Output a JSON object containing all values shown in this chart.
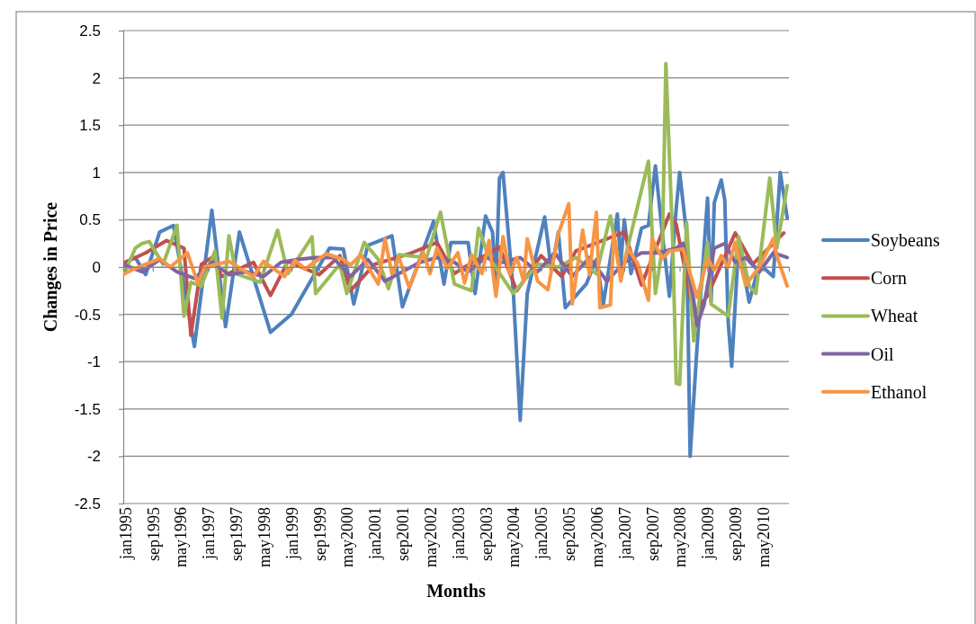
{
  "chart_data": {
    "type": "line",
    "xlabel": "Months",
    "ylabel": "Changes in Price",
    "xlim": [
      "1994-12-16",
      "2010-12-16"
    ],
    "ylim": [
      -2.5,
      2.5
    ],
    "yticks": [
      -2.5,
      -2,
      -1.5,
      -1,
      -0.5,
      0,
      0.5,
      1,
      1.5,
      2,
      2.5
    ],
    "xticks": [
      {
        "value": "1995-01",
        "label": "jan1995"
      },
      {
        "value": "1995-09",
        "label": "sep1995"
      },
      {
        "value": "1996-05",
        "label": "may1996"
      },
      {
        "value": "1997-01",
        "label": "jan1997"
      },
      {
        "value": "1997-09",
        "label": "sep1997"
      },
      {
        "value": "1998-05",
        "label": "may1998"
      },
      {
        "value": "1999-01",
        "label": "jan1999"
      },
      {
        "value": "1999-09",
        "label": "sep1999"
      },
      {
        "value": "2000-05",
        "label": "may2000"
      },
      {
        "value": "2001-01",
        "label": "jan2001"
      },
      {
        "value": "2001-09",
        "label": "sep2001"
      },
      {
        "value": "2002-05",
        "label": "may2002"
      },
      {
        "value": "2003-01",
        "label": "jan2003"
      },
      {
        "value": "2003-09",
        "label": "sep2003"
      },
      {
        "value": "2004-05",
        "label": "may2004"
      },
      {
        "value": "2005-01",
        "label": "jan2005"
      },
      {
        "value": "2005-09",
        "label": "sep2005"
      },
      {
        "value": "2006-05",
        "label": "may2006"
      },
      {
        "value": "2007-01",
        "label": "jan2007"
      },
      {
        "value": "2007-09",
        "label": "sep2007"
      },
      {
        "value": "2008-05",
        "label": "may2008"
      },
      {
        "value": "2009-01",
        "label": "jan2009"
      },
      {
        "value": "2009-09",
        "label": "sep2009"
      },
      {
        "value": "2010-05",
        "label": "may2010"
      }
    ],
    "grid": "y",
    "legend": "right",
    "marker": "none",
    "line_style": "solid",
    "series": [
      {
        "name": "Soybeans",
        "color": "#4f81bd",
        "x": [
          "1995-01",
          "1995-04",
          "1995-07",
          "1995-11",
          "1996-03",
          "1996-09",
          "1997-02",
          "1997-06",
          "1997-10",
          "1998-07",
          "1999-01",
          "1999-12",
          "2000-04",
          "2000-07",
          "2000-11",
          "2001-06",
          "2001-09",
          "2002-06",
          "2002-09",
          "2002-11",
          "2003-04",
          "2003-06",
          "2003-09",
          "2003-11",
          "2003-12",
          "2004-01",
          "2004-02",
          "2004-05",
          "2004-07",
          "2004-09",
          "2005-02",
          "2005-04",
          "2005-06",
          "2005-08",
          "2006-02",
          "2006-05",
          "2006-07",
          "2006-11",
          "2006-12",
          "2007-01",
          "2007-03",
          "2007-06",
          "2007-08",
          "2007-10",
          "2007-12",
          "2008-02",
          "2008-04",
          "2008-05",
          "2008-07",
          "2008-08",
          "2008-10",
          "2009-01",
          "2009-02",
          "2009-03",
          "2009-05",
          "2009-06",
          "2009-07",
          "2009-08",
          "2009-10",
          "2010-01",
          "2010-04",
          "2010-08",
          "2010-10",
          "2010-12"
        ],
        "values": [
          0.05,
          0.1,
          -0.08,
          0.37,
          0.44,
          -0.84,
          0.6,
          -0.63,
          0.37,
          -0.69,
          -0.5,
          0.2,
          0.19,
          -0.39,
          0.23,
          0.33,
          -0.42,
          0.48,
          -0.18,
          0.26,
          0.26,
          -0.28,
          0.54,
          0.37,
          -0.18,
          0.94,
          1.0,
          -0.25,
          -1.62,
          -0.28,
          0.53,
          -0.04,
          0.37,
          -0.43,
          -0.18,
          0.08,
          -0.39,
          0.56,
          0.03,
          0.5,
          -0.07,
          0.41,
          0.44,
          1.07,
          0.35,
          -0.31,
          0.62,
          1.0,
          0.35,
          -2.0,
          -0.84,
          0.73,
          -0.37,
          0.68,
          0.92,
          0.71,
          -0.58,
          -1.05,
          0.26,
          -0.37,
          0.03,
          -0.1,
          1.0,
          0.52
        ]
      },
      {
        "name": "Corn",
        "color": "#c0504d",
        "x": [
          "1995-01",
          "1995-07",
          "1996-01",
          "1996-06",
          "1996-08",
          "1996-11",
          "1997-02",
          "1997-05",
          "1998-02",
          "1998-07",
          "1998-12",
          "1999-09",
          "2000-03",
          "2000-06",
          "2001-01",
          "2001-11",
          "2002-07",
          "2002-12",
          "2003-03",
          "2004-01",
          "2004-06",
          "2005-01",
          "2005-07",
          "2005-11",
          "2007-01",
          "2007-06",
          "2008-02",
          "2008-04",
          "2008-09",
          "2009-01",
          "2009-09",
          "2010-02",
          "2010-11"
        ],
        "values": [
          0.05,
          0.15,
          0.28,
          0.2,
          -0.72,
          0.03,
          0.1,
          -0.1,
          0.05,
          -0.3,
          0.06,
          -0.08,
          0.12,
          -0.25,
          0.03,
          0.14,
          0.26,
          -0.07,
          0,
          0.21,
          -0.25,
          0.12,
          -0.1,
          0.17,
          0.37,
          -0.19,
          0.56,
          0.45,
          -0.5,
          -0.3,
          0.36,
          0.03,
          0.36
        ]
      },
      {
        "name": "Wheat",
        "color": "#9bbb59",
        "x": [
          "1995-01",
          "1995-04",
          "1995-06",
          "1995-08",
          "1995-12",
          "1996-04",
          "1996-06",
          "1996-08",
          "1996-11",
          "1997-03",
          "1997-05",
          "1997-07",
          "1997-09",
          "1998-04",
          "1998-09",
          "1998-12",
          "1999-07",
          "1999-08",
          "2000-03",
          "2000-05",
          "2000-10",
          "2001-02",
          "2001-05",
          "2001-08",
          "2002-04",
          "2002-08",
          "2002-12",
          "2003-05",
          "2003-07",
          "2003-10",
          "2004-05",
          "2004-12",
          "2005-06",
          "2005-11",
          "2006-05",
          "2006-09",
          "2006-12",
          "2007-08",
          "2007-10",
          "2007-12",
          "2008-01",
          "2008-03",
          "2008-04",
          "2008-05",
          "2008-07",
          "2008-09",
          "2009-01",
          "2009-02",
          "2009-07",
          "2009-10",
          "2010-01",
          "2010-03",
          "2010-07",
          "2010-09",
          "2010-12"
        ],
        "values": [
          -0.05,
          0.2,
          0.25,
          0.27,
          0.03,
          0.44,
          -0.52,
          -0.16,
          -0.2,
          0.17,
          -0.54,
          0.33,
          -0.07,
          -0.16,
          0.39,
          -0.07,
          0.32,
          -0.28,
          0.03,
          -0.28,
          0.26,
          0.08,
          -0.23,
          0.13,
          0.1,
          0.58,
          -0.18,
          -0.25,
          0.41,
          0.1,
          -0.28,
          0.03,
          0,
          0.1,
          -0.07,
          0.54,
          -0.1,
          1.12,
          -0.28,
          0.2,
          2.15,
          0.26,
          -1.23,
          -1.24,
          0.47,
          -0.78,
          0.26,
          -0.39,
          -0.52,
          0.32,
          -0.2,
          -0.28,
          0.94,
          0.2,
          0.86
        ]
      },
      {
        "name": "Oil",
        "color": "#8064a2",
        "x": [
          "1995-01",
          "1995-06",
          "1995-11",
          "1996-04",
          "1996-09",
          "1997-02",
          "1997-07",
          "1997-12",
          "1998-05",
          "1998-10",
          "1999-03",
          "1999-08",
          "2000-01",
          "2000-06",
          "2000-11",
          "2001-04",
          "2001-09",
          "2002-02",
          "2002-07",
          "2002-12",
          "2003-04",
          "2003-09",
          "2004-02",
          "2004-07",
          "2004-12",
          "2005-05",
          "2005-10",
          "2006-03",
          "2006-08",
          "2007-01",
          "2007-06",
          "2007-11",
          "2008-04",
          "2008-06",
          "2008-09",
          "2008-10",
          "2008-12",
          "2009-03",
          "2009-06",
          "2009-09",
          "2009-12",
          "2010-04",
          "2010-08",
          "2010-12"
        ],
        "values": [
          0.02,
          -0.05,
          0.08,
          -0.05,
          -0.12,
          0.05,
          -0.08,
          -0.05,
          -0.1,
          0.05,
          0.08,
          0.1,
          0.1,
          -0.1,
          0.08,
          -0.15,
          -0.05,
          0.05,
          0.1,
          0.05,
          -0.05,
          0.1,
          0.05,
          0.1,
          -0.05,
          0.15,
          -0.1,
          0.1,
          -0.15,
          0.05,
          0.15,
          0.15,
          0.2,
          0.25,
          -0.35,
          -0.62,
          -0.4,
          0.2,
          0.25,
          0.05,
          0.1,
          -0.05,
          0.15,
          0.1
        ]
      },
      {
        "name": "Ethanol",
        "color": "#f79646",
        "x": [
          "1995-01",
          "1995-03",
          "1995-07",
          "1995-11",
          "1996-02",
          "1996-07",
          "1996-10",
          "1996-12",
          "1997-07",
          "1998-02",
          "1998-05",
          "1998-11",
          "1999-02",
          "1999-05",
          "1999-11",
          "2000-04",
          "2000-06",
          "2000-09",
          "2001-02",
          "2001-04",
          "2001-06",
          "2001-08",
          "2001-11",
          "2002-03",
          "2002-05",
          "2002-07",
          "2002-10",
          "2003-01",
          "2003-03",
          "2003-05",
          "2003-08",
          "2003-10",
          "2003-12",
          "2004-02",
          "2004-04",
          "2004-06",
          "2004-08",
          "2004-09",
          "2004-12",
          "2005-03",
          "2005-06",
          "2005-09",
          "2005-10",
          "2006-01",
          "2006-03",
          "2006-05",
          "2006-06",
          "2006-09",
          "2006-10",
          "2006-12",
          "2007-02",
          "2007-05",
          "2007-08",
          "2007-09",
          "2007-12",
          "2008-02",
          "2008-06",
          "2008-08",
          "2008-10",
          "2009-01",
          "2009-03",
          "2009-05",
          "2009-07",
          "2009-09",
          "2009-12",
          "2010-04",
          "2010-08",
          "2010-09",
          "2010-12"
        ],
        "values": [
          -0.07,
          -0.03,
          0.03,
          0.09,
          0,
          0.15,
          -0.17,
          0,
          0.06,
          -0.1,
          0.06,
          -0.1,
          0.07,
          -0.02,
          0.14,
          0.08,
          0.02,
          0.13,
          -0.18,
          0.3,
          -0.07,
          0.1,
          -0.22,
          0.16,
          -0.07,
          0.2,
          -0.01,
          0.15,
          -0.17,
          0.13,
          -0.07,
          0.28,
          -0.31,
          0.32,
          -0.08,
          0.1,
          -0.15,
          0.3,
          -0.15,
          -0.24,
          0.35,
          0.67,
          -0.39,
          0.39,
          -0.08,
          0.58,
          -0.43,
          -0.4,
          0.36,
          -0.15,
          0.2,
          0.03,
          -0.35,
          0.3,
          0.09,
          0.17,
          0.19,
          -0.07,
          -0.32,
          0.09,
          -0.03,
          0.12,
          0,
          0.26,
          -0.19,
          0,
          0.3,
          0.12,
          -0.2
        ]
      }
    ]
  }
}
